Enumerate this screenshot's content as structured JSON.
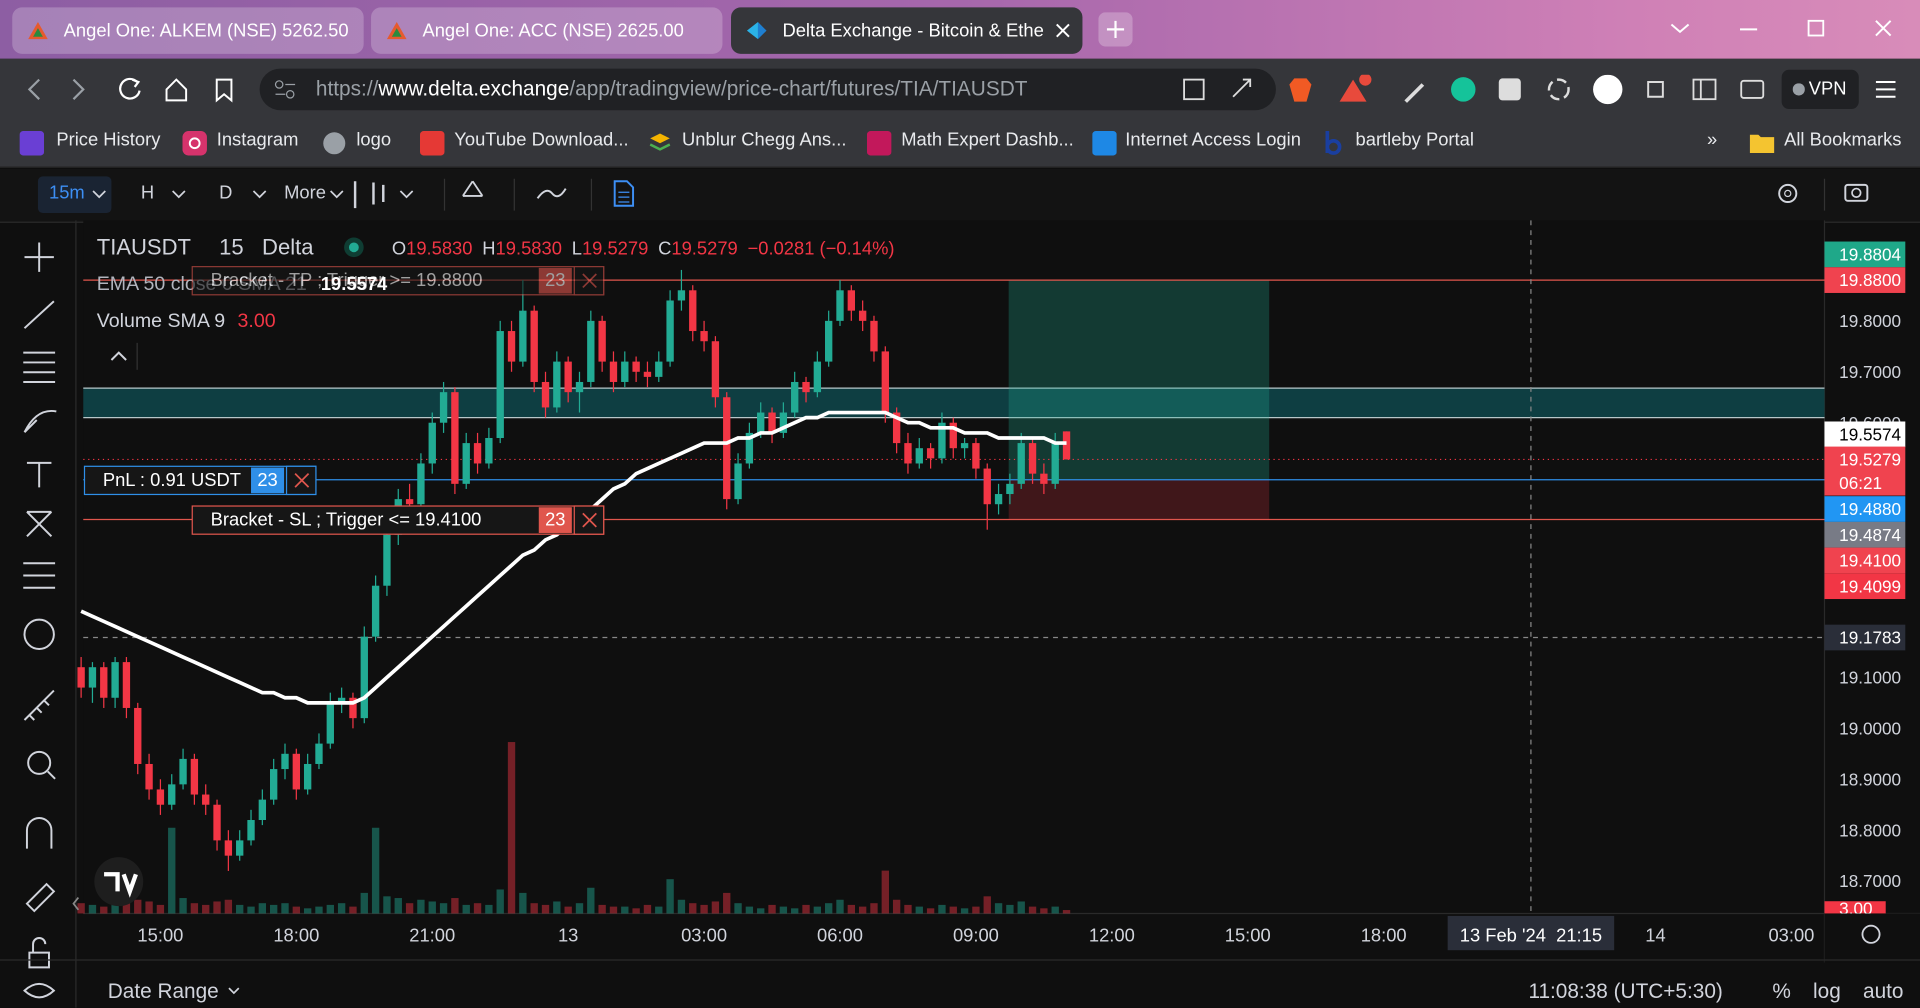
{
  "browser": {
    "tabs": [
      "Angel One: ALKEM (NSE) 5262.50",
      "Angel One: ACC (NSE) 2625.00",
      "Delta Exchange - Bitcoin & Ethe"
    ],
    "url_scheme": "https://",
    "url_host": "www.delta.exchange",
    "url_path": "/app/tradingview/price-chart/futures/TIA/TIAUSDT",
    "vpn": "VPN",
    "bookmarks": [
      "Price History",
      "Instagram",
      "logo",
      "YouTube Download...",
      "Unblur Chegg Ans...",
      "Math Expert Dashb...",
      "Internet Access Login",
      "bartleby Portal"
    ],
    "bookmarks_more": "»",
    "all_bookmarks": "All Bookmarks"
  },
  "toolbar": {
    "interval": "15m",
    "items": [
      "H",
      "D",
      "More"
    ]
  },
  "chart": {
    "type": "candlestick",
    "symbol": "TIAUSDT",
    "interval": "15",
    "exchange": "Delta",
    "ohlc": [
      {
        "key": "O",
        "value": "19.5830"
      },
      {
        "key": "H",
        "value": "19.5830"
      },
      {
        "key": "L",
        "value": "19.5279"
      },
      {
        "key": "C",
        "value": "19.5279"
      }
    ],
    "change": "−0.0281 (−0.14%)",
    "indicators": [
      {
        "name": "EMA 50 close 0 SMA 21",
        "value": "19.5574"
      },
      {
        "name": "Volume SMA 9",
        "value": "3.00"
      }
    ],
    "up_color": "#22ab94",
    "down_color": "#f23645",
    "ema_color": "#ffffff",
    "ylim": [
      18.6365,
      19.99
    ],
    "yticks": [
      {
        "value": 19.8,
        "label": "19.8000"
      },
      {
        "value": 19.7,
        "label": "19.7000"
      },
      {
        "value": 19.6,
        "label": "19.6000"
      },
      {
        "value": 19.1,
        "label": "19.1000"
      },
      {
        "value": 19.0,
        "label": "19.0000"
      },
      {
        "value": 18.9,
        "label": "18.9000"
      },
      {
        "value": 18.8,
        "label": "18.8000"
      },
      {
        "value": 18.7,
        "label": "18.7000"
      }
    ],
    "xticks": [
      {
        "value": 7,
        "label": "15:00"
      },
      {
        "value": 19,
        "label": "18:00"
      },
      {
        "value": 31,
        "label": "21:00"
      },
      {
        "value": 43,
        "label": "13"
      },
      {
        "value": 55,
        "label": "03:00"
      },
      {
        "value": 67,
        "label": "06:00"
      },
      {
        "value": 79,
        "label": "09:00"
      },
      {
        "value": 91,
        "label": "12:00"
      },
      {
        "value": 103,
        "label": "15:00"
      },
      {
        "value": 115,
        "label": "18:00"
      },
      {
        "value": 139,
        "label": "14"
      },
      {
        "value": 151,
        "label": "03:00"
      }
    ],
    "candles": [
      [
        19.12,
        19.14,
        19.06,
        19.08
      ],
      [
        19.08,
        19.13,
        19.05,
        19.12
      ],
      [
        19.12,
        19.13,
        19.04,
        19.06
      ],
      [
        19.06,
        19.14,
        19.04,
        19.13
      ],
      [
        19.13,
        19.14,
        19.02,
        19.04
      ],
      [
        19.04,
        19.05,
        18.91,
        18.93
      ],
      [
        18.93,
        18.95,
        18.86,
        18.88
      ],
      [
        18.88,
        18.9,
        18.83,
        18.85
      ],
      [
        18.85,
        18.91,
        18.84,
        18.89
      ],
      [
        18.89,
        18.96,
        18.88,
        18.94
      ],
      [
        18.94,
        18.95,
        18.85,
        18.87
      ],
      [
        18.87,
        18.89,
        18.83,
        18.85
      ],
      [
        18.85,
        18.86,
        18.76,
        18.78
      ],
      [
        18.78,
        18.8,
        18.72,
        18.75
      ],
      [
        18.75,
        18.8,
        18.74,
        18.78
      ],
      [
        18.78,
        18.84,
        18.77,
        18.82
      ],
      [
        18.82,
        18.88,
        18.81,
        18.86
      ],
      [
        18.86,
        18.94,
        18.85,
        18.92
      ],
      [
        18.92,
        18.97,
        18.9,
        18.95
      ],
      [
        18.95,
        18.96,
        18.86,
        18.88
      ],
      [
        18.88,
        18.95,
        18.87,
        18.93
      ],
      [
        18.93,
        18.99,
        18.92,
        18.97
      ],
      [
        18.97,
        19.07,
        18.96,
        19.05
      ],
      [
        19.05,
        19.08,
        19.03,
        19.06
      ],
      [
        19.06,
        19.07,
        19.0,
        19.02
      ],
      [
        19.02,
        19.2,
        19.01,
        19.18
      ],
      [
        19.18,
        19.3,
        19.17,
        19.28
      ],
      [
        19.28,
        19.4,
        19.26,
        19.38
      ],
      [
        19.38,
        19.47,
        19.36,
        19.45
      ],
      [
        19.45,
        19.48,
        19.41,
        19.44
      ],
      [
        19.44,
        19.54,
        19.43,
        19.52
      ],
      [
        19.52,
        19.62,
        19.5,
        19.6
      ],
      [
        19.6,
        19.68,
        19.58,
        19.66
      ],
      [
        19.66,
        19.67,
        19.46,
        19.48
      ],
      [
        19.48,
        19.58,
        19.47,
        19.56
      ],
      [
        19.56,
        19.58,
        19.5,
        19.52
      ],
      [
        19.52,
        19.59,
        19.51,
        19.57
      ],
      [
        19.57,
        19.8,
        19.56,
        19.78
      ],
      [
        19.78,
        19.8,
        19.7,
        19.72
      ],
      [
        19.72,
        19.88,
        19.71,
        19.82
      ],
      [
        19.82,
        19.83,
        19.66,
        19.68
      ],
      [
        19.68,
        19.7,
        19.61,
        19.63
      ],
      [
        19.63,
        19.74,
        19.62,
        19.72
      ],
      [
        19.72,
        19.73,
        19.64,
        19.66
      ],
      [
        19.66,
        19.7,
        19.62,
        19.68
      ],
      [
        19.68,
        19.82,
        19.67,
        19.8
      ],
      [
        19.8,
        19.81,
        19.7,
        19.72
      ],
      [
        19.72,
        19.74,
        19.66,
        19.68
      ],
      [
        19.68,
        19.74,
        19.67,
        19.72
      ],
      [
        19.72,
        19.73,
        19.68,
        19.7
      ],
      [
        19.7,
        19.72,
        19.67,
        19.69
      ],
      [
        19.69,
        19.74,
        19.68,
        19.72
      ],
      [
        19.72,
        19.86,
        19.71,
        19.84
      ],
      [
        19.84,
        19.9,
        19.82,
        19.86
      ],
      [
        19.86,
        19.87,
        19.76,
        19.78
      ],
      [
        19.78,
        19.8,
        19.74,
        19.76
      ],
      [
        19.76,
        19.77,
        19.63,
        19.65
      ],
      [
        19.65,
        19.66,
        19.43,
        19.45
      ],
      [
        19.45,
        19.54,
        19.44,
        19.52
      ],
      [
        19.52,
        19.6,
        19.51,
        19.58
      ],
      [
        19.58,
        19.64,
        19.57,
        19.62
      ],
      [
        19.62,
        19.63,
        19.56,
        19.58
      ],
      [
        19.58,
        19.64,
        19.57,
        19.62
      ],
      [
        19.62,
        19.7,
        19.61,
        19.68
      ],
      [
        19.68,
        19.69,
        19.64,
        19.66
      ],
      [
        19.66,
        19.74,
        19.65,
        19.72
      ],
      [
        19.72,
        19.82,
        19.71,
        19.8
      ],
      [
        19.8,
        19.88,
        19.79,
        19.86
      ],
      [
        19.86,
        19.87,
        19.8,
        19.82
      ],
      [
        19.82,
        19.84,
        19.78,
        19.8
      ],
      [
        19.8,
        19.81,
        19.72,
        19.74
      ],
      [
        19.74,
        19.75,
        19.6,
        19.62
      ],
      [
        19.62,
        19.63,
        19.54,
        19.56
      ],
      [
        19.56,
        19.58,
        19.5,
        19.52
      ],
      [
        19.52,
        19.57,
        19.51,
        19.55
      ],
      [
        19.55,
        19.56,
        19.51,
        19.53
      ],
      [
        19.53,
        19.62,
        19.52,
        19.6
      ],
      [
        19.6,
        19.61,
        19.53,
        19.55
      ],
      [
        19.55,
        19.57,
        19.53,
        19.56
      ],
      [
        19.56,
        19.57,
        19.49,
        19.51
      ],
      [
        19.51,
        19.52,
        19.39,
        19.44
      ],
      [
        19.44,
        19.48,
        19.42,
        19.46
      ],
      [
        19.46,
        19.5,
        19.44,
        19.48
      ],
      [
        19.48,
        19.58,
        19.47,
        19.56
      ],
      [
        19.56,
        19.57,
        19.48,
        19.5
      ],
      [
        19.5,
        19.52,
        19.46,
        19.48
      ],
      [
        19.48,
        19.58,
        19.47,
        19.56
      ],
      [
        19.583,
        19.583,
        19.5279,
        19.5279
      ]
    ],
    "volume": [
      6,
      5,
      4,
      5,
      6,
      8,
      7,
      5,
      50,
      9,
      6,
      5,
      7,
      8,
      5,
      4,
      6,
      5,
      6,
      4,
      3,
      4,
      5,
      6,
      4,
      12,
      50,
      10,
      9,
      6,
      8,
      7,
      6,
      9,
      5,
      6,
      5,
      14,
      100,
      12,
      6,
      5,
      7,
      4,
      6,
      15,
      5,
      4,
      4,
      3,
      5,
      4,
      20,
      8,
      6,
      5,
      7,
      12,
      6,
      4,
      3,
      5,
      4,
      3,
      5,
      4,
      6,
      8,
      5,
      4,
      6,
      25,
      8,
      5,
      4,
      3,
      5,
      4,
      3,
      4,
      10,
      6,
      5,
      7,
      4,
      3,
      4,
      2
    ],
    "ema": [
      19.23,
      19.22,
      19.21,
      19.2,
      19.19,
      19.18,
      19.17,
      19.16,
      19.15,
      19.14,
      19.13,
      19.12,
      19.11,
      19.1,
      19.09,
      19.08,
      19.07,
      19.07,
      19.06,
      19.06,
      19.05,
      19.05,
      19.05,
      19.05,
      19.05,
      19.06,
      19.08,
      19.1,
      19.12,
      19.14,
      19.16,
      19.18,
      19.2,
      19.22,
      19.24,
      19.26,
      19.28,
      19.3,
      19.32,
      19.34,
      19.35,
      19.37,
      19.38,
      19.4,
      19.41,
      19.43,
      19.45,
      19.47,
      19.48,
      19.5,
      19.51,
      19.52,
      19.53,
      19.54,
      19.55,
      19.56,
      19.56,
      19.56,
      19.57,
      19.57,
      19.58,
      19.58,
      19.59,
      19.6,
      19.61,
      19.61,
      19.62,
      19.62,
      19.62,
      19.62,
      19.62,
      19.62,
      19.61,
      19.6,
      19.6,
      19.59,
      19.59,
      19.59,
      19.58,
      19.58,
      19.58,
      19.57,
      19.57,
      19.57,
      19.57,
      19.57,
      19.56,
      19.56
    ],
    "zone": {
      "from": 19.61,
      "to": 19.668
    },
    "position": {
      "start": 82,
      "end": 105,
      "entry": 19.488,
      "target": 19.88,
      "stop": 19.41
    },
    "orders": [
      {
        "label": "Bracket - TP ; Trigger >= 19.8800",
        "qty": "23",
        "price": 19.88
      },
      {
        "label": "Bracket - SL ; Trigger <= 19.4100",
        "qty": "23",
        "price": 19.41
      }
    ],
    "pnl": {
      "label": "PnL : 0.91 USDT",
      "qty": "23",
      "price": 19.488
    },
    "last_price": 19.5279,
    "price_labels": [
      {
        "value": 19.8804,
        "label": "19.8804",
        "color": "#1fa889"
      },
      {
        "value": 19.88,
        "label": "19.8800",
        "color": "#f0434f"
      },
      {
        "value": 19.5574,
        "label": "19.5574",
        "color": "#ffffff"
      },
      {
        "value": 19.5279,
        "label": "19.5279",
        "color": "#f0434f",
        "countdown": "06:21"
      },
      {
        "value": 19.488,
        "label": "19.4880",
        "color": "#2196f3"
      },
      {
        "value": 19.4874,
        "label": "19.4874",
        "color": "#787b86"
      },
      {
        "value": 19.41,
        "label": "19.4100",
        "color": "#f0434f"
      },
      {
        "value": 19.4099,
        "label": "19.4099",
        "color": "#f23645"
      }
    ],
    "volume_label": "3.00",
    "crosshair": {
      "index": 128,
      "price": 19.1783,
      "price_label": "19.1783",
      "time_label": "13 Feb '24  21:15"
    }
  },
  "footer": {
    "date_range": "Date Range",
    "clock": "11:08:38 (UTC+5:30)",
    "percent": "%",
    "log": "log",
    "auto": "auto"
  }
}
